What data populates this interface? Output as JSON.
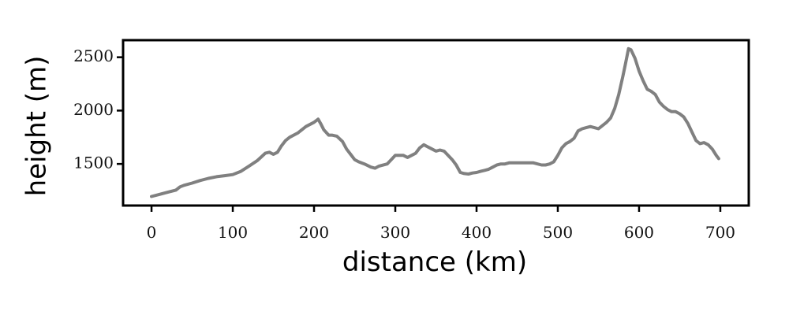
{
  "chart_data": {
    "type": "line",
    "title": "",
    "xlabel": "distance (km)",
    "ylabel": "height (m)",
    "xlim": [
      -35,
      735
    ],
    "ylim": [
      1110,
      2660
    ],
    "xticks": [
      0,
      100,
      200,
      300,
      400,
      500,
      600,
      700
    ],
    "yticks": [
      1500,
      2000,
      2500
    ],
    "grid": false,
    "legend": "none",
    "series": [
      {
        "color": "#808080",
        "x": [
          0,
          10,
          20,
          30,
          35,
          40,
          50,
          60,
          70,
          80,
          90,
          100,
          110,
          120,
          130,
          140,
          145,
          150,
          155,
          160,
          165,
          170,
          180,
          190,
          200,
          205,
          208,
          212,
          218,
          222,
          228,
          235,
          240,
          245,
          250,
          255,
          262,
          270,
          275,
          280,
          290,
          295,
          300,
          310,
          315,
          320,
          325,
          330,
          335,
          340,
          345,
          350,
          355,
          360,
          365,
          370,
          375,
          380,
          385,
          390,
          395,
          400,
          405,
          410,
          415,
          420,
          425,
          430,
          435,
          440,
          450,
          460,
          470,
          480,
          485,
          490,
          495,
          500,
          505,
          510,
          515,
          520,
          525,
          530,
          535,
          540,
          545,
          550,
          555,
          560,
          565,
          570,
          575,
          580,
          583,
          587,
          590,
          595,
          600,
          605,
          610,
          615,
          620,
          625,
          630,
          635,
          640,
          645,
          650,
          655,
          660,
          665,
          670,
          675,
          680,
          685,
          690,
          695,
          698
        ],
        "values": [
          1195,
          1215,
          1235,
          1255,
          1285,
          1300,
          1320,
          1345,
          1365,
          1380,
          1390,
          1400,
          1430,
          1480,
          1530,
          1600,
          1610,
          1590,
          1610,
          1670,
          1720,
          1750,
          1790,
          1850,
          1890,
          1920,
          1880,
          1820,
          1770,
          1770,
          1760,
          1710,
          1640,
          1590,
          1540,
          1520,
          1500,
          1470,
          1460,
          1480,
          1500,
          1540,
          1580,
          1580,
          1560,
          1580,
          1600,
          1650,
          1680,
          1660,
          1640,
          1620,
          1630,
          1620,
          1580,
          1540,
          1490,
          1420,
          1410,
          1405,
          1415,
          1420,
          1430,
          1440,
          1450,
          1470,
          1490,
          1500,
          1500,
          1510,
          1510,
          1510,
          1510,
          1490,
          1490,
          1500,
          1520,
          1580,
          1650,
          1690,
          1710,
          1740,
          1810,
          1830,
          1840,
          1850,
          1840,
          1830,
          1860,
          1890,
          1930,
          2020,
          2150,
          2320,
          2430,
          2580,
          2570,
          2490,
          2370,
          2280,
          2200,
          2180,
          2150,
          2080,
          2040,
          2010,
          1990,
          1990,
          1970,
          1940,
          1880,
          1800,
          1720,
          1690,
          1700,
          1680,
          1640,
          1580,
          1550
        ]
      }
    ]
  }
}
